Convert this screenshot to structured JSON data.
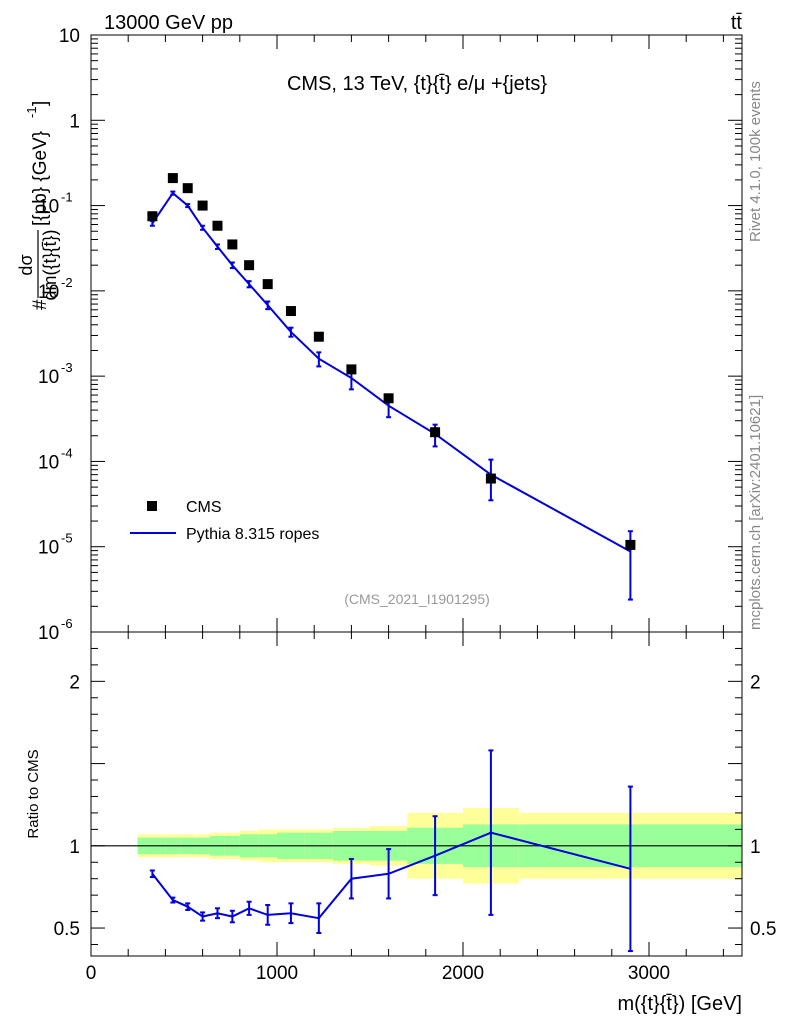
{
  "header": {
    "process": "13000 GeV pp",
    "tag": "tt̄"
  },
  "side": {
    "rivet": "Rivet 4.1.0,  100k events",
    "url": "mcplots.cern.ch [arXiv:2401.10621]"
  },
  "chart_data": {
    "type": "line",
    "title": "CMS, 13 TeV, {t}{t̄} e/μ +{jets}",
    "analysis": "(CMS_2021_I1901295)",
    "xlabel": "m({t}{t̄}) [GeV]",
    "ylabel": "#dσ/dm({t}{t̄}) [{pb} {GeV}⁻¹]",
    "ylabel_parts": {
      "hash": "#",
      "num": "dσ",
      "den": "dm({t}{t̄})",
      "units": "[{pb} {GeV}",
      "exp": "-1",
      "close": "]"
    },
    "xlim": [
      0,
      3500
    ],
    "ylim": [
      1e-06,
      10
    ],
    "yscale": "log",
    "x_ticks": [
      "0",
      "1000",
      "2000",
      "3000"
    ],
    "x_tick_values": [
      0,
      1000,
      2000,
      3000
    ],
    "y_tick_base": "10",
    "y_tick_exponents": [
      "-6",
      "-5",
      "-4",
      "-3",
      "-2",
      "-1"
    ],
    "y_tick_plain": [
      "1",
      "10"
    ],
    "bin_edges": [
      250,
      400,
      480,
      560,
      640,
      720,
      800,
      900,
      1000,
      1150,
      1300,
      1500,
      1700,
      2000,
      2300,
      3500
    ],
    "x": [
      330,
      440,
      520,
      600,
      680,
      760,
      850,
      950,
      1075,
      1225,
      1400,
      1600,
      1850,
      2150,
      2900
    ],
    "series": [
      {
        "name": "CMS",
        "style": "marker",
        "color": "#000000",
        "values": [
          0.075,
          0.21,
          0.16,
          0.1,
          0.058,
          0.035,
          0.02,
          0.012,
          0.0058,
          0.0029,
          0.0012,
          0.00055,
          0.00022,
          6.3e-05,
          1.05e-05
        ]
      },
      {
        "name": "Pythia 8.315 ropes",
        "style": "line",
        "color": "#0000dd",
        "values": [
          0.062,
          0.14,
          0.1,
          0.055,
          0.033,
          0.02,
          0.012,
          0.0068,
          0.0033,
          0.0016,
          0.00095,
          0.00045,
          0.00021,
          7e-05,
          8.8e-06
        ],
        "err_low": [
          0.004,
          0.006,
          0.004,
          0.003,
          0.002,
          0.0015,
          0.001,
          0.0007,
          0.0004,
          0.0003,
          0.00025,
          0.00012,
          6e-05,
          3.5e-05,
          6.4e-06
        ],
        "err_high": [
          0.004,
          0.006,
          0.004,
          0.003,
          0.002,
          0.0015,
          0.001,
          0.0007,
          0.0004,
          0.0003,
          0.00025,
          0.00012,
          6e-05,
          3.5e-05,
          6.4e-06
        ]
      }
    ],
    "legend": [
      "CMS",
      "Pythia 8.315 ropes"
    ],
    "ratio": {
      "ylabel": "Ratio to CMS",
      "ylim": [
        0.33,
        2.3
      ],
      "y_ticks": [
        "0.5",
        "1",
        "2"
      ],
      "y_tick_values": [
        0.5,
        1,
        2
      ],
      "values": [
        0.83,
        0.67,
        0.63,
        0.57,
        0.59,
        0.57,
        0.62,
        0.58,
        0.59,
        0.56,
        0.8,
        0.83,
        0.94,
        1.08,
        0.86
      ],
      "err_low": [
        0.02,
        0.015,
        0.02,
        0.025,
        0.03,
        0.035,
        0.04,
        0.06,
        0.06,
        0.09,
        0.12,
        0.15,
        0.24,
        0.5,
        0.5
      ],
      "err_high": [
        0.02,
        0.015,
        0.02,
        0.025,
        0.03,
        0.035,
        0.04,
        0.06,
        0.06,
        0.09,
        0.12,
        0.15,
        0.24,
        0.5,
        0.5
      ],
      "band_inner": [
        0.05,
        0.05,
        0.05,
        0.05,
        0.06,
        0.06,
        0.07,
        0.07,
        0.08,
        0.08,
        0.09,
        0.09,
        0.11,
        0.13,
        0.13
      ],
      "band_outer": [
        0.07,
        0.07,
        0.07,
        0.07,
        0.08,
        0.08,
        0.09,
        0.1,
        0.1,
        0.1,
        0.11,
        0.12,
        0.2,
        0.23,
        0.2
      ],
      "band_inner_color": "#99ff99",
      "band_outer_color": "#ffff99"
    }
  }
}
